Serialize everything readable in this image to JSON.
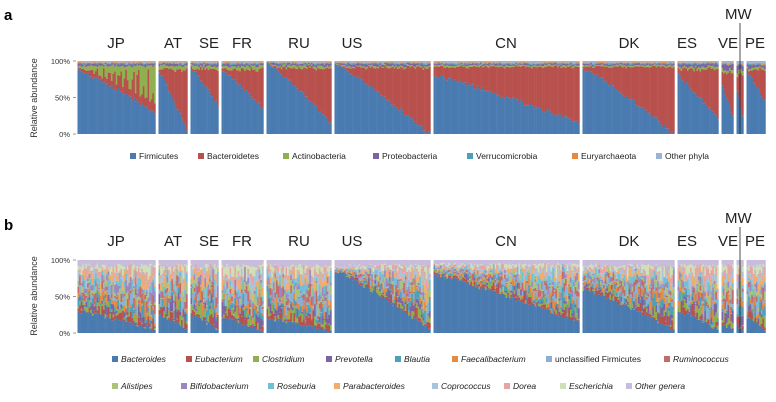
{
  "chart_data": [
    {
      "type": "bar",
      "panel_label": "a",
      "title": "",
      "ylabel": "Relative abundance",
      "yticks": [
        "0%",
        "50%",
        "100%"
      ],
      "ylim": [
        0,
        100
      ],
      "groups": [
        "JP",
        "AT",
        "SE",
        "FR",
        "RU",
        "US",
        "CN",
        "DK",
        "ES",
        "VE",
        "MW",
        "PE"
      ],
      "legend": [
        "Firmicutes",
        "Bacteroidetes",
        "Actinobacteria",
        "Proteobacteria",
        "Verrucomicrobia",
        "Euryarchaeota",
        "Other phyla"
      ],
      "colors": [
        "#4a7bb0",
        "#b8514d",
        "#8fb04e",
        "#7b64a3",
        "#4aa1b8",
        "#e58a3e",
        "#9db3d4"
      ],
      "series": [
        {
          "name": "Firmicutes",
          "start_pct": [
            87,
            85,
            90,
            88,
            97,
            95,
            80,
            90,
            80,
            65,
            60,
            85
          ],
          "end_pct": [
            30,
            5,
            40,
            35,
            15,
            0,
            15,
            0,
            20,
            25,
            25,
            45
          ]
        },
        {
          "name": "Bacteroidetes",
          "mean_pct": [
            15,
            45,
            30,
            30,
            25,
            55,
            55,
            40,
            45,
            40,
            40,
            35
          ]
        },
        {
          "name": "Actinobacteria",
          "mean_pct": [
            35,
            5,
            4,
            4,
            3,
            2,
            2,
            2,
            3,
            4,
            4,
            3
          ]
        },
        {
          "name": "Proteobacteria",
          "mean_pct": [
            3,
            3,
            3,
            3,
            3,
            3,
            2,
            2,
            4,
            6,
            8,
            4
          ]
        },
        {
          "name": "Verrucomicrobia",
          "mean_pct": [
            1,
            1,
            1,
            1,
            1,
            1,
            1,
            1,
            1,
            1,
            1,
            1
          ]
        },
        {
          "name": "Euryarchaeota",
          "mean_pct": [
            1,
            1,
            1,
            1,
            1,
            1,
            1,
            1,
            1,
            1,
            1,
            1
          ]
        },
        {
          "name": "Other phyla",
          "mean_pct": [
            2,
            2,
            2,
            2,
            2,
            2,
            2,
            2,
            2,
            3,
            3,
            3
          ]
        }
      ]
    },
    {
      "type": "bar",
      "panel_label": "b",
      "title": "",
      "ylabel": "Relative abundance",
      "yticks": [
        "0%",
        "50%",
        "100%"
      ],
      "ylim": [
        0,
        100
      ],
      "groups": [
        "JP",
        "AT",
        "SE",
        "FR",
        "RU",
        "US",
        "CN",
        "DK",
        "ES",
        "VE",
        "MW",
        "PE"
      ],
      "legend": [
        "Bacteroides",
        "Eubacterium",
        "Clostridium",
        "Prevotella",
        "Blautia",
        "Faecalibacterium",
        "unclassified Firmicutes",
        "Ruminococcus",
        "Alistipes",
        "Bifidobacterium",
        "Roseburia",
        "Parabacteroides",
        "Coprococcus",
        "Dorea",
        "Escherichia",
        "Other genera"
      ],
      "legend_italic": [
        true,
        true,
        true,
        true,
        true,
        true,
        false,
        true,
        true,
        true,
        true,
        true,
        true,
        true,
        true,
        true
      ],
      "colors": [
        "#4a7bb0",
        "#b8514d",
        "#8fb04e",
        "#7b64a3",
        "#4aa1b8",
        "#e58a3e",
        "#8aaed4",
        "#c46a68",
        "#a8c47a",
        "#9a89bd",
        "#6fc1d6",
        "#f0ad6e",
        "#a9c2dd",
        "#e6a4a2",
        "#cfe0b6",
        "#c8bcdc"
      ],
      "series": [
        {
          "name": "Bacteroides",
          "start_pct": [
            30,
            25,
            25,
            20,
            20,
            85,
            80,
            60,
            30,
            10,
            10,
            20
          ],
          "end_pct": [
            5,
            5,
            5,
            5,
            3,
            5,
            15,
            5,
            5,
            5,
            5,
            5
          ]
        },
        {
          "name": "Other genera",
          "mean_pct": [
            8,
            8,
            8,
            8,
            8,
            8,
            6,
            8,
            8,
            8,
            8,
            8
          ]
        }
      ]
    }
  ],
  "panel_a": {
    "letter": "a",
    "countries": [
      "JP",
      "AT",
      "SE",
      "FR",
      "RU",
      "US",
      "CN",
      "DK",
      "ES",
      "VE",
      "PE"
    ],
    "mw_label": "MW"
  },
  "panel_b": {
    "letter": "b",
    "countries": [
      "JP",
      "AT",
      "SE",
      "FR",
      "RU",
      "US",
      "CN",
      "DK",
      "ES",
      "VE",
      "PE"
    ],
    "mw_label": "MW"
  }
}
